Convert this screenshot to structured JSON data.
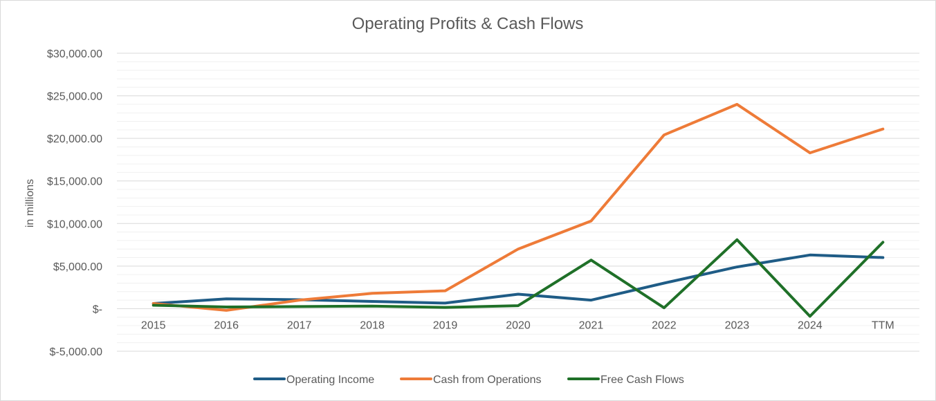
{
  "chart_data": {
    "type": "line",
    "title": "Operating Profits & Cash Flows",
    "xlabel": "",
    "ylabel": "in millions",
    "categories": [
      "2015",
      "2016",
      "2017",
      "2018",
      "2019",
      "2020",
      "2021",
      "2022",
      "2023",
      "2024",
      "TTM"
    ],
    "ylim": [
      -5000,
      30000
    ],
    "y_ticks": [
      -5000,
      0,
      5000,
      10000,
      15000,
      20000,
      25000,
      30000
    ],
    "y_tick_labels": [
      "$-5,000.00",
      "$-",
      "$5,000.00",
      "$10,000.00",
      "$15,000.00",
      "$20,000.00",
      "$25,000.00",
      "$30,000.00"
    ],
    "grid": true,
    "legend_position": "bottom",
    "series": [
      {
        "name": "Operating Income",
        "color": "#1f5c86",
        "values": [
          600,
          1150,
          1050,
          850,
          650,
          1700,
          1000,
          3000,
          4900,
          6300,
          6000
        ]
      },
      {
        "name": "Cash from Operations",
        "color": "#ee7b38",
        "values": [
          600,
          -200,
          1000,
          1800,
          2100,
          7000,
          10300,
          20400,
          24000,
          18300,
          21100
        ]
      },
      {
        "name": "Free Cash Flows",
        "color": "#1f7028",
        "values": [
          400,
          200,
          250,
          300,
          150,
          350,
          5700,
          100,
          8100,
          -900,
          7800
        ]
      }
    ]
  }
}
